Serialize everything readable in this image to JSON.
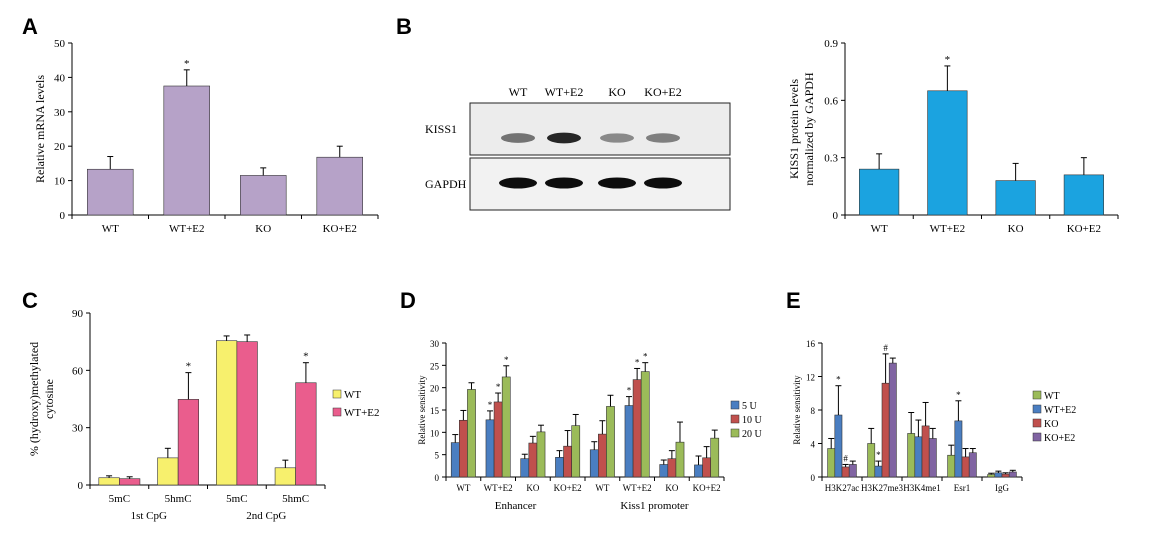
{
  "panel_labels": {
    "A": "A",
    "B": "B",
    "C": "C",
    "D": "D",
    "E": "E"
  },
  "blot": {
    "lanes": [
      "WT",
      "WT+E2",
      "KO",
      "KO+E2"
    ],
    "rows": [
      "KISS1",
      "GAPDH"
    ],
    "kiss1_intensity": [
      0.55,
      0.9,
      0.45,
      0.5
    ],
    "gapdh_intensity": [
      0.95,
      0.95,
      0.95,
      0.95
    ]
  },
  "chart_data": [
    {
      "id": "A",
      "type": "bar",
      "ylabel": "Relative mRNA levels",
      "ylim": [
        0,
        50
      ],
      "yticks": [
        0,
        10,
        20,
        30,
        40,
        50
      ],
      "categories": [
        "WT",
        "WT+E2",
        "KO",
        "KO+E2"
      ],
      "values": [
        13.3,
        37.5,
        11.5,
        16.8
      ],
      "errors": [
        3.7,
        4.7,
        2.2,
        3.2
      ],
      "markers": [
        "",
        "*",
        "",
        ""
      ],
      "color": "#b6a2c8"
    },
    {
      "id": "B",
      "type": "bar",
      "ylabel": [
        "KISS1 protein levels",
        "normalized by GAPDH"
      ],
      "ylim": [
        0,
        0.9
      ],
      "yticks": [
        0,
        0.3,
        0.6,
        0.9
      ],
      "categories": [
        "WT",
        "WT+E2",
        "KO",
        "KO+E2"
      ],
      "values": [
        0.24,
        0.65,
        0.18,
        0.21
      ],
      "errors": [
        0.08,
        0.13,
        0.09,
        0.09
      ],
      "markers": [
        "",
        "*",
        "",
        ""
      ],
      "color": "#1ba3e0"
    },
    {
      "id": "C",
      "type": "bar",
      "ylabel": [
        "% (hydroxy)methylated",
        "cytosine"
      ],
      "ylim": [
        0,
        90
      ],
      "yticks": [
        0,
        30,
        60,
        90
      ],
      "categories": [
        "5mC",
        "5hmC",
        "5mC",
        "5hmC"
      ],
      "groups": [
        "1st CpG",
        "2nd CpG"
      ],
      "series": [
        {
          "name": "WT",
          "color": "#f7f06d",
          "values": [
            3.8,
            14.2,
            75.5,
            9.0
          ],
          "errors": [
            1.0,
            5.0,
            2.5,
            4.0
          ],
          "markers": [
            "",
            "",
            "",
            ""
          ]
        },
        {
          "name": "WT+E2",
          "color": "#ea5d8d",
          "values": [
            3.3,
            44.8,
            75.0,
            53.5
          ],
          "errors": [
            1.0,
            14.0,
            3.5,
            10.5
          ],
          "markers": [
            "",
            "*",
            "",
            "*"
          ]
        }
      ]
    },
    {
      "id": "D",
      "type": "bar",
      "ylabel": "Relative sensitivity",
      "ylim": [
        0,
        30
      ],
      "yticks": [
        0,
        5,
        10,
        15,
        20,
        25,
        30
      ],
      "categories": [
        "WT",
        "WT+E2",
        "KO",
        "KO+E2",
        "WT",
        "WT+E2",
        "KO",
        "KO+E2"
      ],
      "groups": [
        "Enhancer",
        "Kiss1 promoter"
      ],
      "series": [
        {
          "name": "5 U",
          "color": "#4a7ec1",
          "values": [
            7.7,
            12.8,
            4.1,
            4.4,
            6.1,
            16.0,
            2.8,
            2.7
          ],
          "errors": [
            1.8,
            2.0,
            1.0,
            1.5,
            1.8,
            2.0,
            1.0,
            2.0
          ],
          "markers": [
            "",
            "*",
            "",
            "",
            "",
            "*",
            "",
            ""
          ]
        },
        {
          "name": "10 U",
          "color": "#c0504d",
          "values": [
            12.7,
            16.8,
            7.6,
            6.9,
            9.6,
            21.8,
            4.1,
            4.3
          ],
          "errors": [
            2.2,
            2.0,
            1.5,
            3.5,
            3.0,
            2.5,
            1.8,
            2.5
          ],
          "markers": [
            "",
            "*",
            "",
            "",
            "",
            "*",
            "",
            ""
          ]
        },
        {
          "name": "20 U",
          "color": "#9bbb59",
          "values": [
            19.6,
            22.4,
            10.1,
            11.5,
            15.8,
            23.6,
            7.8,
            8.7
          ],
          "errors": [
            1.5,
            2.5,
            1.5,
            2.5,
            2.5,
            2.0,
            4.5,
            1.8
          ],
          "markers": [
            "",
            "*",
            "",
            "",
            "",
            "*",
            "",
            ""
          ]
        }
      ]
    },
    {
      "id": "E",
      "type": "bar",
      "ylabel": "Relative sensitivity",
      "ylim": [
        0,
        16
      ],
      "yticks": [
        0,
        4,
        8,
        12,
        16
      ],
      "categories": [
        "H3K27ac",
        "H3K27me3",
        "H3K4me1",
        "Esr1",
        "IgG"
      ],
      "series": [
        {
          "name": "WT",
          "color": "#9bbb59",
          "values": [
            3.4,
            4.0,
            5.2,
            2.6,
            0.3
          ],
          "errors": [
            1.2,
            1.8,
            2.5,
            1.2,
            0.15
          ],
          "markers": [
            "",
            "",
            "",
            "",
            ""
          ]
        },
        {
          "name": "WT+E2",
          "color": "#4a7ec1",
          "values": [
            7.4,
            1.3,
            4.8,
            6.7,
            0.5
          ],
          "errors": [
            3.5,
            0.6,
            2.0,
            2.4,
            0.2
          ],
          "markers": [
            "*",
            "*",
            "",
            "*",
            ""
          ]
        },
        {
          "name": "KO",
          "color": "#c0504d",
          "values": [
            1.2,
            11.2,
            6.1,
            2.4,
            0.35
          ],
          "errors": [
            0.3,
            3.5,
            2.8,
            1.0,
            0.15
          ],
          "markers": [
            "#",
            "#",
            "",
            "",
            ""
          ]
        },
        {
          "name": "KO+E2",
          "color": "#8064a2",
          "values": [
            1.5,
            13.6,
            4.6,
            2.9,
            0.6
          ],
          "errors": [
            0.4,
            0.6,
            1.2,
            0.5,
            0.2
          ],
          "markers": [
            "",
            "",
            "",
            "",
            ""
          ]
        }
      ]
    }
  ]
}
